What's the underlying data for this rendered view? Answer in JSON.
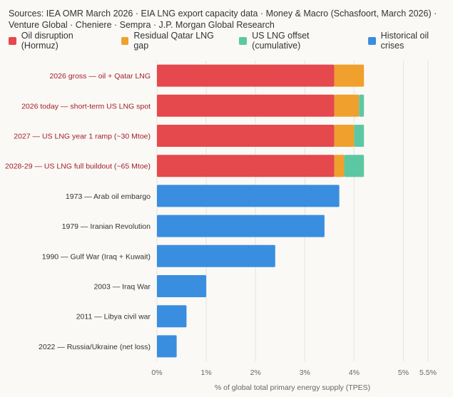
{
  "sources": "Sources: IEA OMR March 2026 · EIA LNG export capacity data · Money & Macro (Schasfoort, March 2026) · Venture Global · Cheniere · Sempra · J.P. Morgan Global Research",
  "colors": {
    "oil": "#e5484d",
    "qatar": "#f0a02c",
    "uslng": "#5cc8a3",
    "historical": "#3a8ee0",
    "scenario_label": "#a3202a",
    "historical_label": "#333333"
  },
  "chart_data": {
    "type": "bar",
    "orientation": "horizontal",
    "stacked": true,
    "xlabel": "% of global total primary energy supply (TPES)",
    "xlim": [
      0,
      5.5
    ],
    "xticks": [
      0,
      1,
      2,
      3,
      4,
      5,
      5.5
    ],
    "xtick_labels": [
      "0%",
      "1%",
      "2%",
      "3%",
      "4%",
      "5%",
      "5.5%"
    ],
    "grid": true,
    "legend_position": "top",
    "categories": [
      "2026 gross — oil + Qatar LNG",
      "2026 today — short-term US LNG spot",
      "2027 — US LNG year 1 ramp (~30 Mtoe)",
      "2028-29 — US LNG full buildout (~65 Mtoe)",
      "1973 — Arab oil embargo",
      "1979 — Iranian Revolution",
      "1990 — Gulf War (Iraq + Kuwait)",
      "2003 — Iraq War",
      "2011 — Libya civil war",
      "2022 — Russia/Ukraine (net loss)"
    ],
    "series": [
      {
        "name": "Oil disruption (Hormuz)",
        "color_key": "oil",
        "values": [
          3.6,
          3.6,
          3.6,
          3.6,
          0,
          0,
          0,
          0,
          0,
          0
        ]
      },
      {
        "name": "Residual Qatar LNG gap",
        "color_key": "qatar",
        "values": [
          0.6,
          0.5,
          0.4,
          0.2,
          0,
          0,
          0,
          0,
          0,
          0
        ]
      },
      {
        "name": "US LNG offset (cumulative)",
        "color_key": "uslng",
        "values": [
          0,
          0.1,
          0.2,
          0.4,
          0,
          0,
          0,
          0,
          0,
          0
        ]
      },
      {
        "name": "Historical oil crises",
        "color_key": "historical",
        "values": [
          0,
          0,
          0,
          0,
          3.7,
          3.4,
          2.4,
          1.0,
          0.6,
          0.4
        ]
      }
    ]
  }
}
